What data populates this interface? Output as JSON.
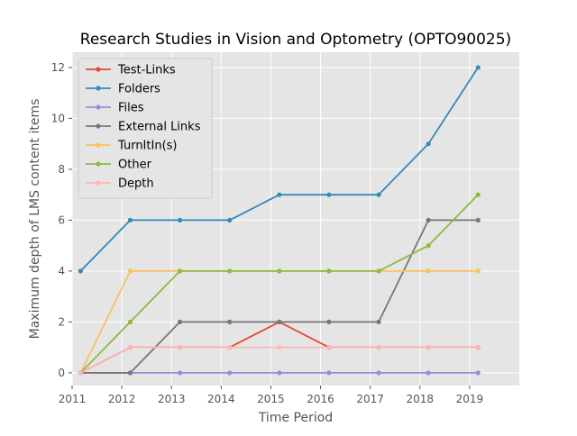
{
  "chart_data": {
    "type": "line",
    "title": "Research Studies in Vision and Optometry (OPTO90025)",
    "xlabel": "Time Period",
    "ylabel": "Maximum depth of LMS content items",
    "xlim": [
      2011,
      2020
    ],
    "ylim": [
      -0.5,
      12.6
    ],
    "x_ticks": [
      2011,
      2012,
      2013,
      2014,
      2015,
      2016,
      2017,
      2018,
      2019
    ],
    "y_ticks": [
      0,
      2,
      4,
      6,
      8,
      10,
      12
    ],
    "grid": true,
    "legend_position": "upper-left",
    "x": [
      2011.17,
      2012.17,
      2013.17,
      2014.17,
      2015.17,
      2016.17,
      2017.17,
      2018.17,
      2019.17
    ],
    "series": [
      {
        "name": "Test-Links",
        "color": "#E24A33",
        "values": [
          0,
          1,
          1,
          1,
          2,
          1,
          1,
          1,
          1
        ]
      },
      {
        "name": "Folders",
        "color": "#348ABD",
        "values": [
          4,
          6,
          6,
          6,
          7,
          7,
          7,
          9,
          12
        ]
      },
      {
        "name": "Files",
        "color": "#988ED5",
        "values": [
          0,
          0,
          0,
          0,
          0,
          0,
          0,
          0,
          0
        ]
      },
      {
        "name": "External Links",
        "color": "#777777",
        "values": [
          0,
          0,
          2,
          2,
          2,
          2,
          2,
          6,
          6
        ]
      },
      {
        "name": "TurnItIn(s)",
        "color": "#FBC15E",
        "values": [
          0,
          4,
          4,
          4,
          4,
          4,
          4,
          4,
          4
        ]
      },
      {
        "name": "Other",
        "color": "#8EBA42",
        "values": [
          0,
          2,
          4,
          4,
          4,
          4,
          4,
          5,
          7
        ]
      },
      {
        "name": "Depth",
        "color": "#FFB5B8",
        "values": [
          0,
          1,
          1,
          1,
          1,
          1,
          1,
          1,
          1
        ]
      }
    ]
  }
}
